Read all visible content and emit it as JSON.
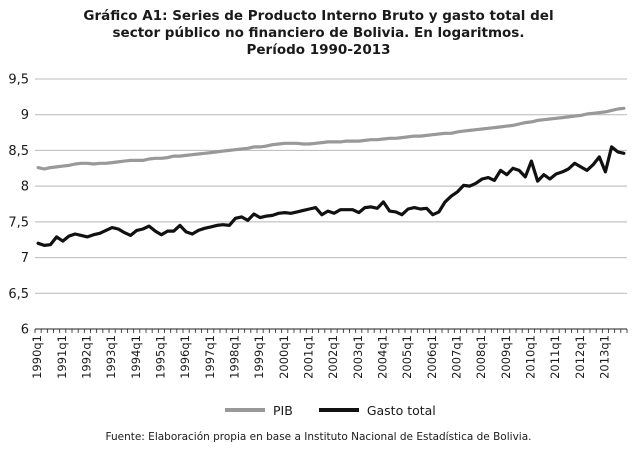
{
  "chart_data": {
    "type": "line",
    "title": "Gráfico A1: Series de Producto Interno Bruto y gasto total del\nsector público no financiero de Bolivia. En logaritmos.\nPeríodo 1990-2013",
    "source": "Fuente: Elaboración propia en base a Instituto Nacional de Estadística de Bolivia.",
    "ylim": [
      6,
      9.5
    ],
    "yticks": [
      "6",
      "6,5",
      "7",
      "7,5",
      "8",
      "8,5",
      "9",
      "9,5"
    ],
    "grid": true,
    "legend_position": "bottom",
    "xticks": [
      "1990q1",
      "1991q1",
      "1992q1",
      "1993q1",
      "1994q1",
      "1995q1",
      "1996q1",
      "1997q1",
      "1998q1",
      "1999q1",
      "2000q1",
      "2001q1",
      "2002q1",
      "2003q1",
      "2004q1",
      "2005q1",
      "2006q1",
      "2007q1",
      "2008q1",
      "2009q1",
      "2010q1",
      "2011q1",
      "2012q1",
      "2013q1"
    ],
    "x_start": "1990q1",
    "periods": 96,
    "series": [
      {
        "name": "PIB",
        "color": "#999999",
        "values": [
          8.26,
          8.24,
          8.26,
          8.27,
          8.28,
          8.29,
          8.31,
          8.32,
          8.32,
          8.31,
          8.32,
          8.32,
          8.33,
          8.34,
          8.35,
          8.36,
          8.36,
          8.36,
          8.38,
          8.39,
          8.39,
          8.4,
          8.42,
          8.42,
          8.43,
          8.44,
          8.45,
          8.46,
          8.47,
          8.48,
          8.49,
          8.5,
          8.51,
          8.52,
          8.53,
          8.55,
          8.55,
          8.56,
          8.58,
          8.59,
          8.6,
          8.6,
          8.6,
          8.59,
          8.59,
          8.6,
          8.61,
          8.62,
          8.62,
          8.62,
          8.63,
          8.63,
          8.63,
          8.64,
          8.65,
          8.65,
          8.66,
          8.67,
          8.67,
          8.68,
          8.69,
          8.7,
          8.7,
          8.71,
          8.72,
          8.73,
          8.74,
          8.74,
          8.76,
          8.77,
          8.78,
          8.79,
          8.8,
          8.81,
          8.82,
          8.83,
          8.84,
          8.85,
          8.87,
          8.89,
          8.9,
          8.92,
          8.93,
          8.94,
          8.95,
          8.96,
          8.97,
          8.98,
          8.99,
          9.01,
          9.02,
          9.03,
          9.04,
          9.06,
          9.08,
          9.09
        ]
      },
      {
        "name": "Gasto total",
        "color": "#111111",
        "values": [
          7.2,
          7.17,
          7.18,
          7.29,
          7.23,
          7.3,
          7.33,
          7.31,
          7.29,
          7.32,
          7.34,
          7.38,
          7.42,
          7.4,
          7.35,
          7.31,
          7.38,
          7.4,
          7.44,
          7.37,
          7.32,
          7.37,
          7.37,
          7.45,
          7.36,
          7.33,
          7.38,
          7.41,
          7.43,
          7.45,
          7.46,
          7.45,
          7.55,
          7.57,
          7.52,
          7.61,
          7.56,
          7.58,
          7.59,
          7.62,
          7.63,
          7.62,
          7.64,
          7.66,
          7.68,
          7.7,
          7.6,
          7.65,
          7.62,
          7.67,
          7.67,
          7.67,
          7.63,
          7.7,
          7.71,
          7.69,
          7.78,
          7.65,
          7.64,
          7.6,
          7.68,
          7.7,
          7.68,
          7.69,
          7.6,
          7.64,
          7.78,
          7.86,
          7.92,
          8.01,
          8.0,
          8.04,
          8.1,
          8.12,
          8.08,
          8.22,
          8.16,
          8.25,
          8.22,
          8.13,
          8.35,
          8.07,
          8.16,
          8.1,
          8.17,
          8.2,
          8.24,
          8.32,
          8.27,
          8.22,
          8.3,
          8.41,
          8.2,
          8.55,
          8.48,
          8.46
        ]
      }
    ]
  }
}
